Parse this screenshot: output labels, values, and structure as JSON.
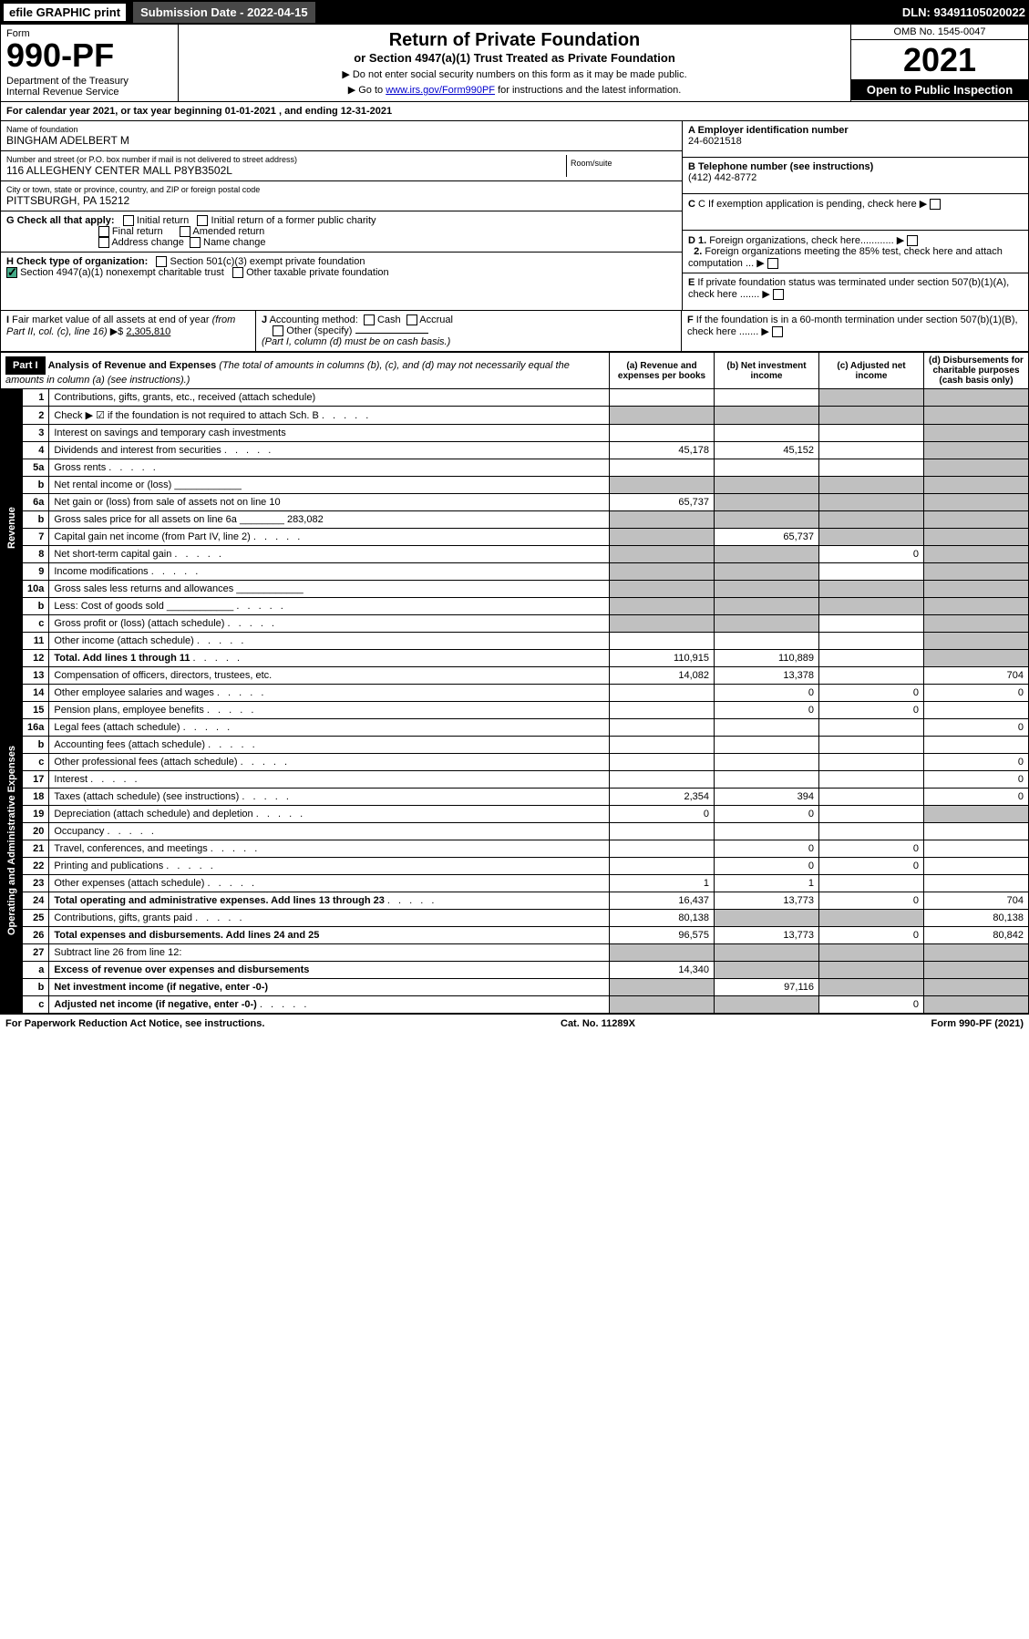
{
  "top": {
    "efile": "efile GRAPHIC print",
    "sub_label": "Submission Date - 2022-04-15",
    "dln": "DLN: 93491105020022"
  },
  "header": {
    "form_label": "Form",
    "form_no": "990-PF",
    "dept": "Department of the Treasury\nInternal Revenue Service",
    "title": "Return of Private Foundation",
    "subtitle": "or Section 4947(a)(1) Trust Treated as Private Foundation",
    "note1": "▶ Do not enter social security numbers on this form as it may be made public.",
    "note2": "▶ Go to ",
    "link": "www.irs.gov/Form990PF",
    "note2b": " for instructions and the latest information.",
    "omb": "OMB No. 1545-0047",
    "year": "2021",
    "open": "Open to Public Inspection"
  },
  "cal": "For calendar year 2021, or tax year beginning 01-01-2021 , and ending 12-31-2021",
  "info": {
    "name_lbl": "Name of foundation",
    "name": "BINGHAM ADELBERT M",
    "addr_lbl": "Number and street (or P.O. box number if mail is not delivered to street address)",
    "addr": "116 ALLEGHENY CENTER MALL P8YB3502L",
    "room_lbl": "Room/suite",
    "city_lbl": "City or town, state or province, country, and ZIP or foreign postal code",
    "city": "PITTSBURGH, PA  15212",
    "ein_lbl": "A Employer identification number",
    "ein": "24-6021518",
    "tel_lbl": "B Telephone number (see instructions)",
    "tel": "(412) 442-8772",
    "c_lbl": "C If exemption application is pending, check here",
    "d1": "D 1. Foreign organizations, check here............",
    "d2": "2. Foreign organizations meeting the 85% test, check here and attach computation ...",
    "e": "E If private foundation status was terminated under section 507(b)(1)(A), check here .......",
    "f": "F If the foundation is in a 60-month termination under section 507(b)(1)(B), check here .......",
    "g_lbl": "G Check all that apply:",
    "g_opts": [
      "Initial return",
      "Initial return of a former public charity",
      "Final return",
      "Amended return",
      "Address change",
      "Name change"
    ],
    "h_lbl": "H Check type of organization:",
    "h_501": "Section 501(c)(3) exempt private foundation",
    "h_4947": "Section 4947(a)(1) nonexempt charitable trust",
    "h_other": "Other taxable private foundation",
    "i_lbl": "I Fair market value of all assets at end of year (from Part II, col. (c), line 16) ▶$",
    "i_val": "2,305,810",
    "j_lbl": "J Accounting method:",
    "j_cash": "Cash",
    "j_accrual": "Accrual",
    "j_other": "Other (specify)",
    "j_note": "(Part I, column (d) must be on cash basis.)"
  },
  "part1": {
    "label": "Part I",
    "title": "Analysis of Revenue and Expenses",
    "note": "(The total of amounts in columns (b), (c), and (d) may not necessarily equal the amounts in column (a) (see instructions).)",
    "cols": {
      "a": "(a) Revenue and expenses per books",
      "b": "(b) Net investment income",
      "c": "(c) Adjusted net income",
      "d": "(d) Disbursements for charitable purposes (cash basis only)"
    }
  },
  "vlabels": {
    "rev": "Revenue",
    "exp": "Operating and Administrative Expenses"
  },
  "rows": [
    {
      "n": "1",
      "d": "Contributions, gifts, grants, etc., received (attach schedule)",
      "a": "",
      "b": "",
      "c": "g",
      "dd": "g"
    },
    {
      "n": "2",
      "d": "Check ▶ ☑ if the foundation is not required to attach Sch. B",
      "a": "g",
      "b": "g",
      "c": "g",
      "dd": "g",
      "dotted": true
    },
    {
      "n": "3",
      "d": "Interest on savings and temporary cash investments",
      "a": "",
      "b": "",
      "c": "",
      "dd": "g"
    },
    {
      "n": "4",
      "d": "Dividends and interest from securities",
      "a": "45,178",
      "b": "45,152",
      "c": "",
      "dd": "g",
      "dotted": true
    },
    {
      "n": "5a",
      "d": "Gross rents",
      "a": "",
      "b": "",
      "c": "",
      "dd": "g",
      "dotted": true
    },
    {
      "n": "b",
      "d": "Net rental income or (loss)",
      "a": "g",
      "b": "g",
      "c": "g",
      "dd": "g",
      "inline": true
    },
    {
      "n": "6a",
      "d": "Net gain or (loss) from sale of assets not on line 10",
      "a": "65,737",
      "b": "g",
      "c": "g",
      "dd": "g"
    },
    {
      "n": "b",
      "d": "Gross sales price for all assets on line 6a",
      "a": "g",
      "b": "g",
      "c": "g",
      "dd": "g",
      "inline": "283,082"
    },
    {
      "n": "7",
      "d": "Capital gain net income (from Part IV, line 2)",
      "a": "g",
      "b": "65,737",
      "c": "g",
      "dd": "g",
      "dotted": true
    },
    {
      "n": "8",
      "d": "Net short-term capital gain",
      "a": "g",
      "b": "g",
      "c": "0",
      "dd": "g",
      "dotted": true
    },
    {
      "n": "9",
      "d": "Income modifications",
      "a": "g",
      "b": "g",
      "c": "",
      "dd": "g",
      "dotted": true
    },
    {
      "n": "10a",
      "d": "Gross sales less returns and allowances",
      "a": "g",
      "b": "g",
      "c": "g",
      "dd": "g",
      "inline": true
    },
    {
      "n": "b",
      "d": "Less: Cost of goods sold",
      "a": "g",
      "b": "g",
      "c": "g",
      "dd": "g",
      "inline": true,
      "dotted": true
    },
    {
      "n": "c",
      "d": "Gross profit or (loss) (attach schedule)",
      "a": "g",
      "b": "g",
      "c": "",
      "dd": "g",
      "dotted": true
    },
    {
      "n": "11",
      "d": "Other income (attach schedule)",
      "a": "",
      "b": "",
      "c": "",
      "dd": "g",
      "dotted": true
    },
    {
      "n": "12",
      "d": "Total. Add lines 1 through 11",
      "a": "110,915",
      "b": "110,889",
      "c": "",
      "dd": "g",
      "bold": true,
      "dotted": true
    },
    {
      "n": "13",
      "d": "Compensation of officers, directors, trustees, etc.",
      "a": "14,082",
      "b": "13,378",
      "c": "",
      "dd": "704"
    },
    {
      "n": "14",
      "d": "Other employee salaries and wages",
      "a": "",
      "b": "0",
      "c": "0",
      "dd": "0",
      "dotted": true
    },
    {
      "n": "15",
      "d": "Pension plans, employee benefits",
      "a": "",
      "b": "0",
      "c": "0",
      "dd": "",
      "dotted": true
    },
    {
      "n": "16a",
      "d": "Legal fees (attach schedule)",
      "a": "",
      "b": "",
      "c": "",
      "dd": "0",
      "dotted": true
    },
    {
      "n": "b",
      "d": "Accounting fees (attach schedule)",
      "a": "",
      "b": "",
      "c": "",
      "dd": "",
      "dotted": true
    },
    {
      "n": "c",
      "d": "Other professional fees (attach schedule)",
      "a": "",
      "b": "",
      "c": "",
      "dd": "0",
      "dotted": true
    },
    {
      "n": "17",
      "d": "Interest",
      "a": "",
      "b": "",
      "c": "",
      "dd": "0",
      "dotted": true
    },
    {
      "n": "18",
      "d": "Taxes (attach schedule) (see instructions)",
      "a": "2,354",
      "b": "394",
      "c": "",
      "dd": "0",
      "dotted": true
    },
    {
      "n": "19",
      "d": "Depreciation (attach schedule) and depletion",
      "a": "0",
      "b": "0",
      "c": "",
      "dd": "g",
      "dotted": true
    },
    {
      "n": "20",
      "d": "Occupancy",
      "a": "",
      "b": "",
      "c": "",
      "dd": "",
      "dotted": true
    },
    {
      "n": "21",
      "d": "Travel, conferences, and meetings",
      "a": "",
      "b": "0",
      "c": "0",
      "dd": "",
      "dotted": true
    },
    {
      "n": "22",
      "d": "Printing and publications",
      "a": "",
      "b": "0",
      "c": "0",
      "dd": "",
      "dotted": true
    },
    {
      "n": "23",
      "d": "Other expenses (attach schedule)",
      "a": "1",
      "b": "1",
      "c": "",
      "dd": "",
      "dotted": true
    },
    {
      "n": "24",
      "d": "Total operating and administrative expenses. Add lines 13 through 23",
      "a": "16,437",
      "b": "13,773",
      "c": "0",
      "dd": "704",
      "bold": true,
      "dotted": true
    },
    {
      "n": "25",
      "d": "Contributions, gifts, grants paid",
      "a": "80,138",
      "b": "g",
      "c": "g",
      "dd": "80,138",
      "dotted": true
    },
    {
      "n": "26",
      "d": "Total expenses and disbursements. Add lines 24 and 25",
      "a": "96,575",
      "b": "13,773",
      "c": "0",
      "dd": "80,842",
      "bold": true
    },
    {
      "n": "27",
      "d": "Subtract line 26 from line 12:",
      "a": "g",
      "b": "g",
      "c": "g",
      "dd": "g"
    },
    {
      "n": "a",
      "d": "Excess of revenue over expenses and disbursements",
      "a": "14,340",
      "b": "g",
      "c": "g",
      "dd": "g",
      "bold": true
    },
    {
      "n": "b",
      "d": "Net investment income (if negative, enter -0-)",
      "a": "g",
      "b": "97,116",
      "c": "g",
      "dd": "g",
      "bold": true
    },
    {
      "n": "c",
      "d": "Adjusted net income (if negative, enter -0-)",
      "a": "g",
      "b": "g",
      "c": "0",
      "dd": "g",
      "bold": true,
      "dotted": true
    }
  ],
  "footer": {
    "left": "For Paperwork Reduction Act Notice, see instructions.",
    "mid": "Cat. No. 11289X",
    "right": "Form 990-PF (2021)"
  }
}
